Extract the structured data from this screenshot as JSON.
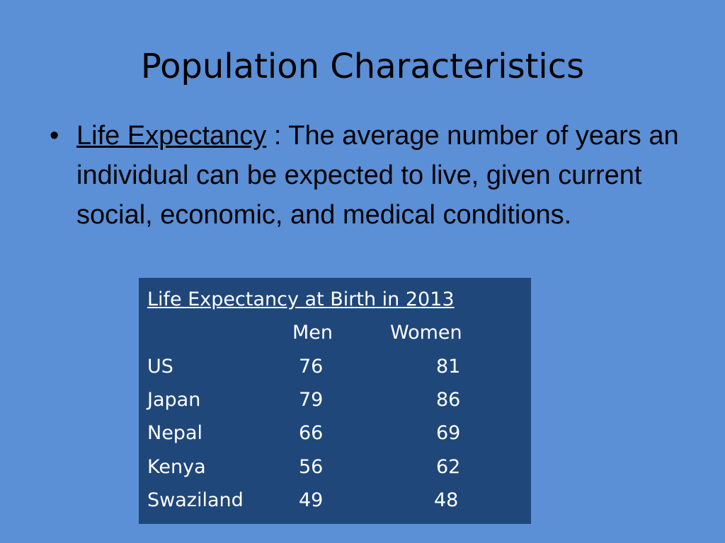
{
  "slide": {
    "title": "Population Characteristics",
    "bullet": {
      "marker": "•",
      "term": "Life Expectancy",
      "separator": " : ",
      "definition": "The average number of years an individual can be expected to live, given current social, economic, and medical conditions."
    }
  },
  "table": {
    "caption": "Life Expectancy at Birth in 2013",
    "columns": [
      "Men",
      "Women"
    ],
    "rows": [
      {
        "country": "US",
        "men": "76",
        "women": "81"
      },
      {
        "country": "Japan",
        "men": "79",
        "women": "86"
      },
      {
        "country": "Nepal",
        "men": "66",
        "women": "69"
      },
      {
        "country": "Kenya",
        "men": "56",
        "women": "62"
      },
      {
        "country": "Swaziland",
        "men": "49",
        "women": "48"
      }
    ]
  },
  "colors": {
    "background": "#5b8fd6",
    "table_background": "#1f477a",
    "table_text": "#ffffff"
  }
}
